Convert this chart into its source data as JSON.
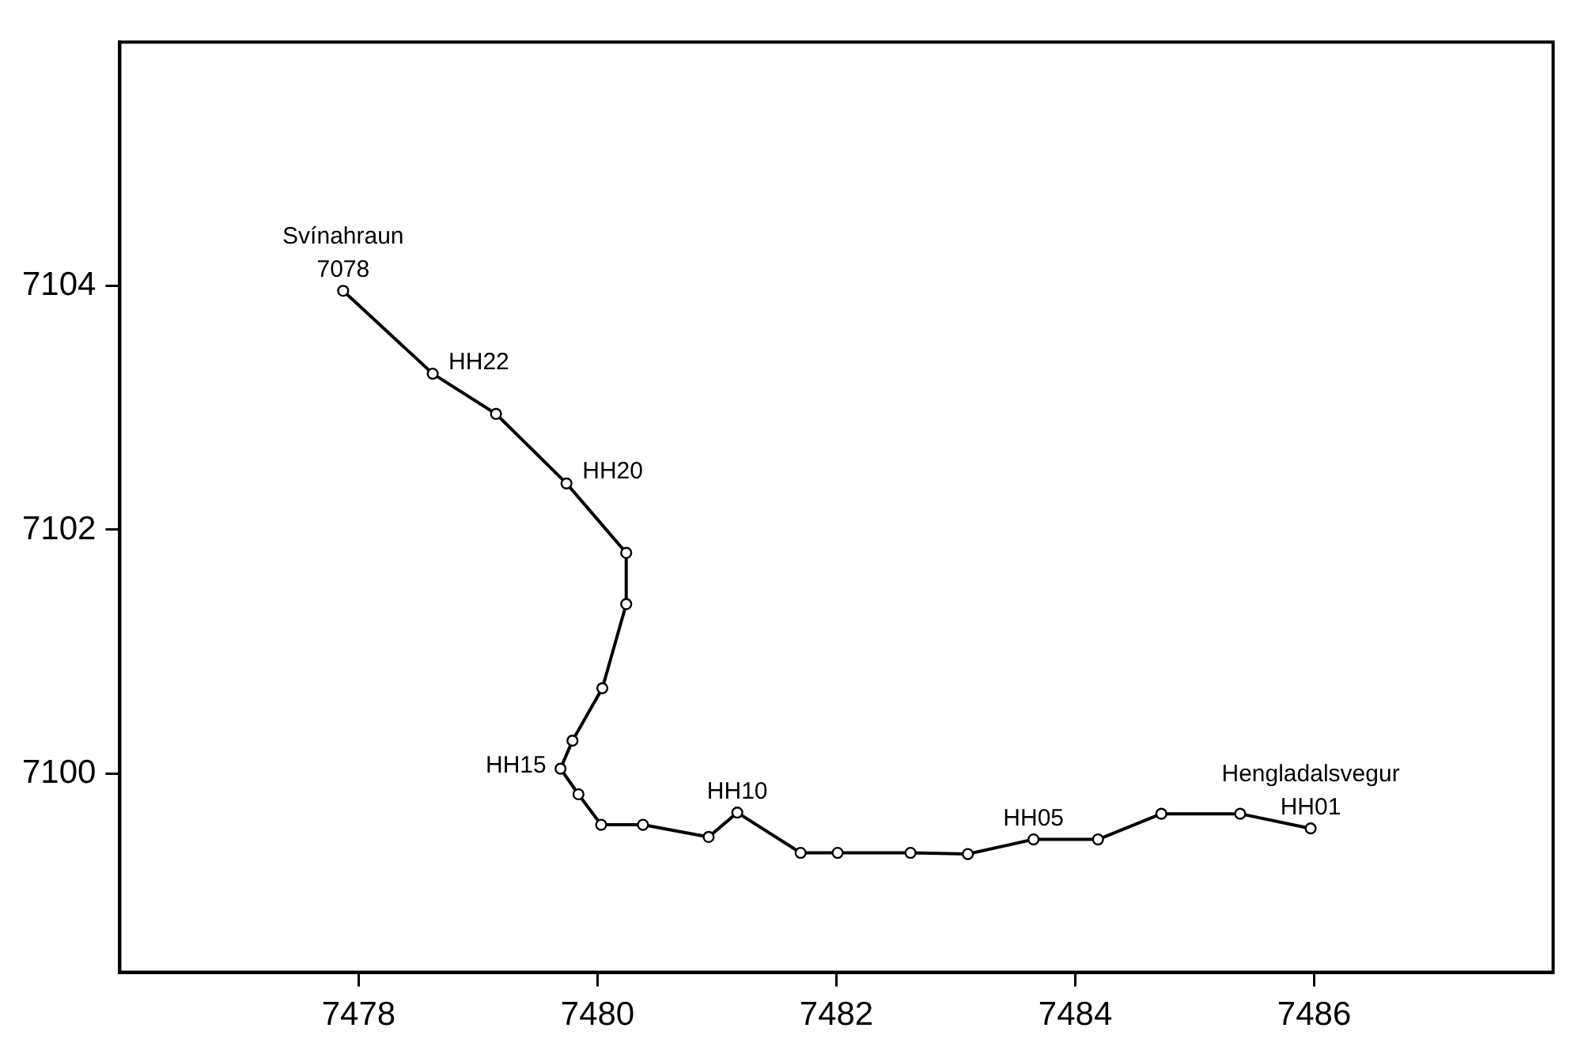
{
  "chart_data": {
    "type": "line",
    "color": "#000000",
    "marker": "circle",
    "line_style": "solid",
    "grid": false,
    "legend": false,
    "x": [
      7477.87,
      7478.62,
      7479.15,
      7479.74,
      7480.24,
      7480.24,
      7480.04,
      7479.79,
      7479.69,
      7479.84,
      7480.03,
      7480.38,
      7480.93,
      7481.17,
      7481.7,
      7482.01,
      7482.62,
      7483.1,
      7483.65,
      7484.19,
      7484.72,
      7485.38,
      7485.97
    ],
    "values": [
      7103.96,
      7103.28,
      7102.95,
      7102.38,
      7101.81,
      7101.39,
      7100.7,
      7100.27,
      7100.04,
      7099.83,
      7099.58,
      7099.58,
      7099.48,
      7099.68,
      7099.35,
      7099.35,
      7099.35,
      7099.34,
      7099.46,
      7099.46,
      7099.67,
      7099.67,
      7099.55
    ],
    "xlim": [
      7476,
      7488
    ],
    "xticks": [
      7478,
      7480,
      7482,
      7484,
      7486
    ],
    "ylim": [
      7098.37,
      7106
    ],
    "yticks": [
      7100,
      7102,
      7104
    ],
    "annotations": [
      {
        "text": "7078",
        "x": 7477.87,
        "y": 7103.96
      },
      {
        "text": "Svínahraun",
        "x": 7477.87,
        "y": 7103.96
      },
      {
        "text": "HH22",
        "x": 7478.62,
        "y": 7103.28
      },
      {
        "text": "HH20",
        "x": 7479.74,
        "y": 7102.38
      },
      {
        "text": "HH15",
        "x": 7479.69,
        "y": 7100.04
      },
      {
        "text": "HH10",
        "x": 7481.17,
        "y": 7099.68
      },
      {
        "text": "HH05",
        "x": 7483.65,
        "y": 7099.46
      },
      {
        "text": "HH01",
        "x": 7485.97,
        "y": 7099.55
      },
      {
        "text": "Hengladalsvegur",
        "x": 7485.97,
        "y": 7099.55
      }
    ]
  }
}
